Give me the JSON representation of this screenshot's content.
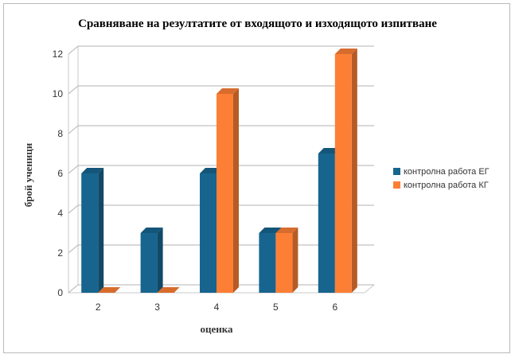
{
  "chart_data": {
    "type": "bar",
    "title": "Сравняване на резултатите от входящото и изходящото изпитване",
    "xlabel": "оценка",
    "ylabel": "брой ученици",
    "categories": [
      "2",
      "3",
      "4",
      "5",
      "6"
    ],
    "series": [
      {
        "name": "контролна работа ЕГ",
        "values": [
          6,
          3,
          6,
          3,
          7
        ],
        "color": "#17658e"
      },
      {
        "name": "контролна работа КГ",
        "values": [
          0,
          0,
          10,
          3,
          12
        ],
        "color": "#fd7f35"
      }
    ],
    "ylim": [
      0,
      12
    ],
    "yticks": [
      "0",
      "2",
      "4",
      "6",
      "8",
      "10",
      "12"
    ],
    "grid": true,
    "legend_position": "right",
    "style": "3d-bar"
  }
}
